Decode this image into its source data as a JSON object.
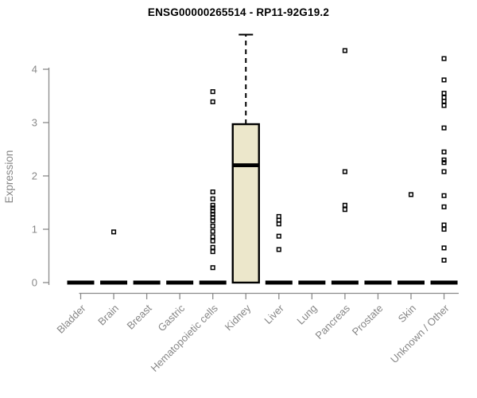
{
  "chart_data": {
    "type": "boxplot",
    "title": "ENSG00000265514 - RP11-92G19.2",
    "ylabel": "Expression",
    "ylim": [
      0,
      4.7
    ],
    "yticks": [
      0,
      1,
      2,
      3,
      4
    ],
    "grid": false,
    "legend": "none",
    "categories": [
      "Bladder",
      "Brain",
      "Breast",
      "Gastric",
      "Hematopoietic cells",
      "Kidney",
      "Liver",
      "Lung",
      "Pancreas",
      "Prostate",
      "Skin",
      "Unknown / Other"
    ],
    "boxes": [
      {
        "label": "Bladder",
        "q1": 0,
        "median": 0,
        "q3": 0,
        "whisker_low": 0,
        "whisker_high": 0,
        "outliers": []
      },
      {
        "label": "Brain",
        "q1": 0,
        "median": 0,
        "q3": 0,
        "whisker_low": 0,
        "whisker_high": 0,
        "outliers": [
          0.95
        ]
      },
      {
        "label": "Breast",
        "q1": 0,
        "median": 0,
        "q3": 0,
        "whisker_low": 0,
        "whisker_high": 0,
        "outliers": []
      },
      {
        "label": "Gastric",
        "q1": 0,
        "median": 0,
        "q3": 0,
        "whisker_low": 0,
        "whisker_high": 0,
        "outliers": []
      },
      {
        "label": "Hematopoietic cells",
        "q1": 0,
        "median": 0,
        "q3": 0,
        "whisker_low": 0,
        "whisker_high": 0,
        "outliers": [
          3.58,
          3.39,
          1.7,
          1.57,
          1.45,
          1.4,
          1.34,
          1.28,
          1.22,
          1.16,
          1.06,
          0.96,
          0.86,
          0.78,
          0.66,
          0.58,
          0.28
        ]
      },
      {
        "label": "Kidney",
        "q1": 0,
        "median": 2.2,
        "q3": 2.97,
        "whisker_low": 0,
        "whisker_high": 4.65,
        "outliers": []
      },
      {
        "label": "Liver",
        "q1": 0,
        "median": 0,
        "q3": 0,
        "whisker_low": 0,
        "whisker_high": 0,
        "outliers": [
          1.24,
          1.17,
          1.1,
          0.87,
          0.62
        ]
      },
      {
        "label": "Lung",
        "q1": 0,
        "median": 0,
        "q3": 0,
        "whisker_low": 0,
        "whisker_high": 0,
        "outliers": []
      },
      {
        "label": "Pancreas",
        "q1": 0,
        "median": 0,
        "q3": 0,
        "whisker_low": 0,
        "whisker_high": 0,
        "outliers": [
          4.35,
          2.08,
          1.45,
          1.37
        ]
      },
      {
        "label": "Prostate",
        "q1": 0,
        "median": 0,
        "q3": 0,
        "whisker_low": 0,
        "whisker_high": 0,
        "outliers": []
      },
      {
        "label": "Skin",
        "q1": 0,
        "median": 0,
        "q3": 0,
        "whisker_low": 0,
        "whisker_high": 0,
        "outliers": [
          1.65
        ]
      },
      {
        "label": "Unknown / Other",
        "q1": 0,
        "median": 0,
        "q3": 0,
        "whisker_low": 0,
        "whisker_high": 0,
        "outliers": [
          4.2,
          3.8,
          3.55,
          3.47,
          3.4,
          3.32,
          2.9,
          2.45,
          2.3,
          2.25,
          2.08,
          1.63,
          1.42,
          1.08,
          1.0,
          0.65,
          0.42
        ]
      }
    ],
    "colors": {
      "box_fill": "#ECE7CB",
      "box_stroke": "#000000",
      "median": "#000000",
      "whisker": "#000000",
      "outlier": "#000000",
      "axis_line": "#8A8A8A",
      "tick_label": "#878787",
      "title": "#000000",
      "background": "#FFFFFF"
    }
  }
}
